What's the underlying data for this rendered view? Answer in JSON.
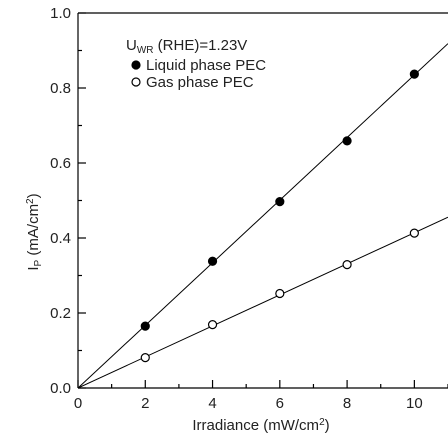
{
  "chart_data": {
    "type": "scatter",
    "title": "",
    "xlabel_main": "Irradiance (mW/cm",
    "xlabel_sup": "2",
    "xlabel_end": ")",
    "ylabel_main": "I",
    "ylabel_sub": "P",
    "ylabel_mid": " (mA/cm",
    "ylabel_sup": "2",
    "ylabel_end": ")",
    "xlim": [
      0,
      11
    ],
    "ylim": [
      0,
      1.0
    ],
    "x_ticks": [
      0,
      2,
      4,
      6,
      8,
      10
    ],
    "x_tick_labels": [
      "0",
      "2",
      "4",
      "6",
      "8",
      "10"
    ],
    "y_ticks": [
      0.0,
      0.2,
      0.4,
      0.6,
      0.8,
      1.0
    ],
    "y_tick_labels": [
      "0.0",
      "0.2",
      "0.4",
      "0.6",
      "0.8",
      "1.0"
    ],
    "grid": false,
    "legend_position": "top-left",
    "legend_condition_main": "U",
    "legend_condition_sub": "WR",
    "legend_condition_end": " (RHE)=1.23V",
    "series": [
      {
        "name": "Liquid phase PEC",
        "marker": "filled-circle",
        "x": [
          2,
          4,
          6,
          8,
          10
        ],
        "y": [
          0.165,
          0.338,
          0.497,
          0.659,
          0.837
        ],
        "fit_slope": 0.0835,
        "color": "#000000"
      },
      {
        "name": "Gas phase PEC",
        "marker": "open-circle",
        "x": [
          2,
          4,
          6,
          8,
          10
        ],
        "y": [
          0.081,
          0.169,
          0.252,
          0.329,
          0.413
        ],
        "fit_slope": 0.0414,
        "color": "#000000"
      }
    ]
  }
}
